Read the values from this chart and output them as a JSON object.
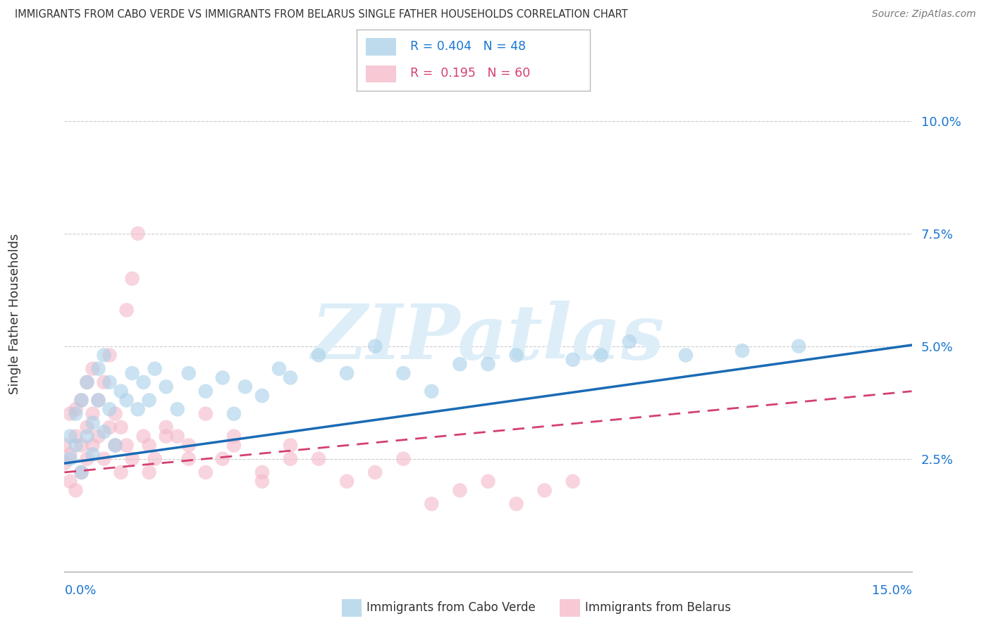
{
  "title": "IMMIGRANTS FROM CABO VERDE VS IMMIGRANTS FROM BELARUS SINGLE FATHER HOUSEHOLDS CORRELATION CHART",
  "source": "Source: ZipAtlas.com",
  "ylabel": "Single Father Households",
  "legend_cabo": "Immigrants from Cabo Verde",
  "legend_belarus": "Immigrants from Belarus",
  "R_cabo": 0.404,
  "N_cabo": 48,
  "R_belarus": 0.195,
  "N_belarus": 60,
  "xmin": 0.0,
  "xmax": 0.15,
  "ymin": 0.0,
  "ymax": 0.108,
  "yticks": [
    0.025,
    0.05,
    0.075,
    0.1
  ],
  "ytick_labels": [
    "2.5%",
    "5.0%",
    "7.5%",
    "10.0%"
  ],
  "color_cabo": "#a8d0e8",
  "color_belarus": "#f4b8c8",
  "line_color_cabo": "#1a6bb5",
  "line_color_belarus": "#d44070",
  "watermark_color": "#ddeef8",
  "cabo_intercept": 0.024,
  "cabo_slope": 0.175,
  "belarus_intercept": 0.022,
  "belarus_slope": 0.12,
  "cabo_verde_x": [
    0.001,
    0.001,
    0.002,
    0.002,
    0.003,
    0.003,
    0.004,
    0.004,
    0.005,
    0.005,
    0.006,
    0.006,
    0.007,
    0.007,
    0.008,
    0.008,
    0.009,
    0.01,
    0.011,
    0.012,
    0.013,
    0.014,
    0.015,
    0.016,
    0.018,
    0.02,
    0.022,
    0.025,
    0.028,
    0.03,
    0.032,
    0.035,
    0.038,
    0.04,
    0.045,
    0.05,
    0.055,
    0.06,
    0.065,
    0.07,
    0.075,
    0.08,
    0.09,
    0.095,
    0.1,
    0.11,
    0.12,
    0.13
  ],
  "cabo_verde_y": [
    0.025,
    0.03,
    0.028,
    0.035,
    0.022,
    0.038,
    0.03,
    0.042,
    0.026,
    0.033,
    0.038,
    0.045,
    0.031,
    0.048,
    0.036,
    0.042,
    0.028,
    0.04,
    0.038,
    0.044,
    0.036,
    0.042,
    0.038,
    0.045,
    0.041,
    0.036,
    0.044,
    0.04,
    0.043,
    0.035,
    0.041,
    0.039,
    0.045,
    0.043,
    0.048,
    0.044,
    0.05,
    0.044,
    0.04,
    0.046,
    0.046,
    0.048,
    0.047,
    0.048,
    0.051,
    0.048,
    0.049,
    0.05
  ],
  "belarus_x": [
    0.0,
    0.0,
    0.001,
    0.001,
    0.001,
    0.002,
    0.002,
    0.002,
    0.003,
    0.003,
    0.003,
    0.004,
    0.004,
    0.004,
    0.005,
    0.005,
    0.005,
    0.006,
    0.006,
    0.007,
    0.007,
    0.008,
    0.008,
    0.009,
    0.009,
    0.01,
    0.011,
    0.012,
    0.013,
    0.014,
    0.015,
    0.016,
    0.018,
    0.02,
    0.022,
    0.025,
    0.028,
    0.03,
    0.035,
    0.04,
    0.045,
    0.05,
    0.055,
    0.06,
    0.065,
    0.07,
    0.075,
    0.08,
    0.085,
    0.09,
    0.01,
    0.011,
    0.012,
    0.015,
    0.018,
    0.022,
    0.025,
    0.03,
    0.035,
    0.04
  ],
  "belarus_y": [
    0.024,
    0.028,
    0.02,
    0.026,
    0.035,
    0.018,
    0.03,
    0.036,
    0.022,
    0.028,
    0.038,
    0.025,
    0.032,
    0.042,
    0.028,
    0.035,
    0.045,
    0.03,
    0.038,
    0.025,
    0.042,
    0.032,
    0.048,
    0.028,
    0.035,
    0.022,
    0.058,
    0.065,
    0.075,
    0.03,
    0.028,
    0.025,
    0.032,
    0.03,
    0.028,
    0.035,
    0.025,
    0.03,
    0.022,
    0.028,
    0.025,
    0.02,
    0.022,
    0.025,
    0.015,
    0.018,
    0.02,
    0.015,
    0.018,
    0.02,
    0.032,
    0.028,
    0.025,
    0.022,
    0.03,
    0.025,
    0.022,
    0.028,
    0.02,
    0.025
  ]
}
